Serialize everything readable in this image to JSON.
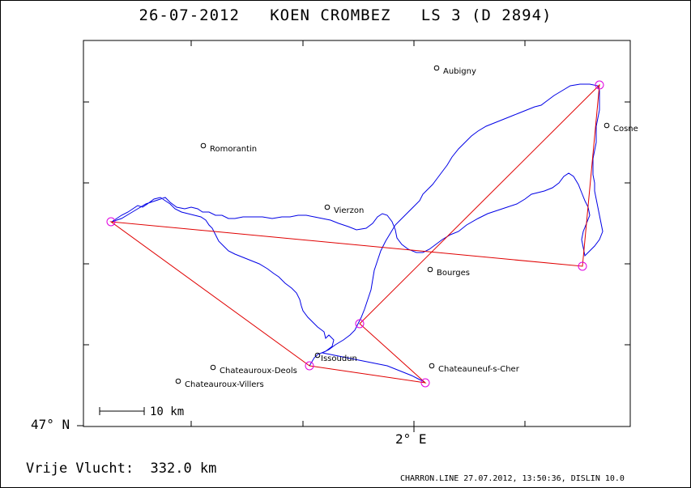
{
  "title": "26-07-2012   KOEN CROMBEZ   LS 3 (D 2894)",
  "axis": {
    "lat_label": "47° N",
    "lon_label": "2° E"
  },
  "scale": {
    "label": "10 km"
  },
  "footer": {
    "distance": "Vrije Vlucht:  332.0 km",
    "credit": "CHARRON.LINE 27.07.2012, 13:50:36, DISLIN 10.0"
  },
  "colors": {
    "track": "#0000e6",
    "task": "#e00000",
    "turnpoint": "#e000e0"
  },
  "towns": [
    {
      "name": "Aubigny"
    },
    {
      "name": "Cosne"
    },
    {
      "name": "Romorantin"
    },
    {
      "name": "Vierzon"
    },
    {
      "name": "Bourges"
    },
    {
      "name": "Issoudun"
    },
    {
      "name": "Chateauroux-Deols"
    },
    {
      "name": "Chateauroux-Villers"
    },
    {
      "name": "Chateauneuf-s-Cher"
    }
  ]
}
